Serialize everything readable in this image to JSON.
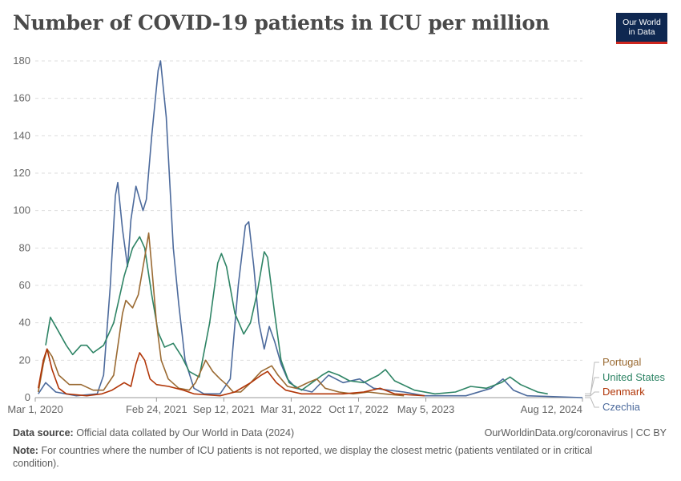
{
  "header": {
    "title": "Number of COVID-19 patients in ICU per million",
    "logo_line1": "Our World",
    "logo_line2": "in Data"
  },
  "footer": {
    "source_label": "Data source:",
    "source_text": "Official data collated by Our World in Data (2024)",
    "link": "OurWorldinData.org/coronavirus | CC BY",
    "note_label": "Note:",
    "note_text": "For countries where the number of ICU patients is not reported, we display the closest metric (patients ventilated or in critical condition)."
  },
  "chart_data": {
    "type": "line",
    "title": "Number of COVID-19 patients in ICU per million",
    "ylim": [
      0,
      180
    ],
    "yticks": [
      0,
      20,
      40,
      60,
      80,
      100,
      120,
      140,
      160,
      180
    ],
    "xlim": [
      "2020-03-01",
      "2024-08-12"
    ],
    "xticks": [
      "Mar 1, 2020",
      "Feb 24, 2021",
      "Sep 12, 2021",
      "Mar 31, 2022",
      "Oct 17, 2022",
      "May 5, 2023",
      "Aug 12, 2024"
    ],
    "xtick_dates": [
      "2020-03-01",
      "2021-02-24",
      "2021-09-12",
      "2022-03-31",
      "2022-10-17",
      "2023-05-05",
      "2024-08-12"
    ],
    "grid": true,
    "legend": "right, labels at line ends",
    "series": [
      {
        "name": "Portugal",
        "color": "#9a6a32",
        "points": [
          [
            "2020-03-10",
            3
          ],
          [
            "2020-03-25",
            18
          ],
          [
            "2020-04-05",
            26
          ],
          [
            "2020-04-20",
            22
          ],
          [
            "2020-05-10",
            12
          ],
          [
            "2020-06-10",
            7
          ],
          [
            "2020-07-15",
            7
          ],
          [
            "2020-08-20",
            4
          ],
          [
            "2020-09-20",
            4
          ],
          [
            "2020-10-20",
            12
          ],
          [
            "2020-11-15",
            45
          ],
          [
            "2020-11-25",
            52
          ],
          [
            "2020-12-15",
            48
          ],
          [
            "2021-01-01",
            55
          ],
          [
            "2021-01-20",
            75
          ],
          [
            "2021-02-01",
            88
          ],
          [
            "2021-02-10",
            70
          ],
          [
            "2021-02-24",
            40
          ],
          [
            "2021-03-10",
            20
          ],
          [
            "2021-03-31",
            10
          ],
          [
            "2021-05-01",
            5
          ],
          [
            "2021-06-01",
            4
          ],
          [
            "2021-06-20",
            8
          ],
          [
            "2021-07-20",
            20
          ],
          [
            "2021-08-10",
            14
          ],
          [
            "2021-09-01",
            10
          ],
          [
            "2021-09-20",
            7
          ],
          [
            "2021-10-10",
            3
          ],
          [
            "2021-11-01",
            3
          ],
          [
            "2021-12-01",
            8
          ],
          [
            "2022-01-01",
            14
          ],
          [
            "2022-02-01",
            17
          ],
          [
            "2022-02-20",
            12
          ],
          [
            "2022-03-20",
            6
          ],
          [
            "2022-04-15",
            5
          ],
          [
            "2022-05-20",
            8
          ],
          [
            "2022-06-15",
            10
          ],
          [
            "2022-07-10",
            5
          ],
          [
            "2022-08-20",
            3
          ],
          [
            "2022-10-01",
            2
          ],
          [
            "2022-11-15",
            3
          ],
          [
            "2023-01-01",
            2
          ],
          [
            "2023-03-01",
            1
          ]
        ]
      },
      {
        "name": "United States",
        "color": "#2e8465",
        "points": [
          [
            "2020-04-01",
            28
          ],
          [
            "2020-04-15",
            43
          ],
          [
            "2020-05-01",
            38
          ],
          [
            "2020-06-01",
            28
          ],
          [
            "2020-06-20",
            23
          ],
          [
            "2020-07-15",
            28
          ],
          [
            "2020-08-01",
            28
          ],
          [
            "2020-08-20",
            24
          ],
          [
            "2020-09-20",
            28
          ],
          [
            "2020-10-20",
            40
          ],
          [
            "2020-11-20",
            65
          ],
          [
            "2020-12-15",
            80
          ],
          [
            "2021-01-05",
            86
          ],
          [
            "2021-01-20",
            80
          ],
          [
            "2021-02-10",
            55
          ],
          [
            "2021-03-01",
            35
          ],
          [
            "2021-03-20",
            27
          ],
          [
            "2021-04-15",
            29
          ],
          [
            "2021-05-10",
            22
          ],
          [
            "2021-06-01",
            14
          ],
          [
            "2021-07-01",
            11
          ],
          [
            "2021-08-01",
            40
          ],
          [
            "2021-08-25",
            72
          ],
          [
            "2021-09-05",
            77
          ],
          [
            "2021-09-20",
            70
          ],
          [
            "2021-10-15",
            45
          ],
          [
            "2021-11-10",
            34
          ],
          [
            "2021-11-30",
            40
          ],
          [
            "2021-12-20",
            56
          ],
          [
            "2022-01-10",
            78
          ],
          [
            "2022-01-20",
            75
          ],
          [
            "2022-02-10",
            45
          ],
          [
            "2022-03-01",
            20
          ],
          [
            "2022-03-25",
            8
          ],
          [
            "2022-05-01",
            4
          ],
          [
            "2022-06-01",
            8
          ],
          [
            "2022-07-01",
            12
          ],
          [
            "2022-07-20",
            14
          ],
          [
            "2022-08-20",
            12
          ],
          [
            "2022-09-20",
            9
          ],
          [
            "2022-11-01",
            8
          ],
          [
            "2022-12-15",
            12
          ],
          [
            "2023-01-05",
            15
          ],
          [
            "2023-02-01",
            9
          ],
          [
            "2023-04-01",
            4
          ],
          [
            "2023-06-01",
            2
          ],
          [
            "2023-08-01",
            3
          ],
          [
            "2023-09-15",
            6
          ],
          [
            "2023-11-01",
            5
          ],
          [
            "2023-12-15",
            8
          ],
          [
            "2024-01-10",
            11
          ],
          [
            "2024-02-10",
            7
          ],
          [
            "2024-04-01",
            3
          ],
          [
            "2024-05-01",
            2
          ]
        ]
      },
      {
        "name": "Denmark",
        "color": "#b13507",
        "points": [
          [
            "2020-03-10",
            5
          ],
          [
            "2020-03-25",
            20
          ],
          [
            "2020-04-05",
            26
          ],
          [
            "2020-04-20",
            15
          ],
          [
            "2020-05-10",
            5
          ],
          [
            "2020-06-01",
            2
          ],
          [
            "2020-08-01",
            1
          ],
          [
            "2020-09-15",
            2
          ],
          [
            "2020-10-15",
            4
          ],
          [
            "2020-11-20",
            8
          ],
          [
            "2020-12-10",
            6
          ],
          [
            "2020-12-25",
            18
          ],
          [
            "2021-01-05",
            24
          ],
          [
            "2021-01-20",
            20
          ],
          [
            "2021-02-05",
            10
          ],
          [
            "2021-02-24",
            7
          ],
          [
            "2021-04-01",
            6
          ],
          [
            "2021-05-15",
            4
          ],
          [
            "2021-06-15",
            2
          ],
          [
            "2021-09-01",
            1
          ],
          [
            "2021-10-15",
            3
          ],
          [
            "2021-12-01",
            8
          ],
          [
            "2022-01-01",
            12
          ],
          [
            "2022-01-20",
            14
          ],
          [
            "2022-02-15",
            8
          ],
          [
            "2022-03-15",
            4
          ],
          [
            "2022-05-01",
            2
          ],
          [
            "2022-07-01",
            2
          ],
          [
            "2022-09-01",
            2
          ],
          [
            "2022-11-01",
            3
          ],
          [
            "2022-12-20",
            5
          ],
          [
            "2023-02-01",
            2
          ],
          [
            "2023-05-01",
            1
          ]
        ]
      },
      {
        "name": "Czechia",
        "color": "#4c6a9c",
        "points": [
          [
            "2020-03-10",
            2
          ],
          [
            "2020-04-01",
            8
          ],
          [
            "2020-05-01",
            3
          ],
          [
            "2020-07-01",
            1
          ],
          [
            "2020-09-01",
            2
          ],
          [
            "2020-09-20",
            12
          ],
          [
            "2020-10-10",
            60
          ],
          [
            "2020-10-25",
            108
          ],
          [
            "2020-11-01",
            115
          ],
          [
            "2020-11-15",
            90
          ],
          [
            "2020-11-30",
            70
          ],
          [
            "2020-12-10",
            95
          ],
          [
            "2020-12-25",
            113
          ],
          [
            "2021-01-15",
            100
          ],
          [
            "2021-01-25",
            106
          ],
          [
            "2021-02-10",
            140
          ],
          [
            "2021-03-01",
            175
          ],
          [
            "2021-03-08",
            180
          ],
          [
            "2021-03-25",
            150
          ],
          [
            "2021-04-15",
            80
          ],
          [
            "2021-05-01",
            50
          ],
          [
            "2021-05-20",
            20
          ],
          [
            "2021-06-15",
            5
          ],
          [
            "2021-07-15",
            2
          ],
          [
            "2021-09-01",
            2
          ],
          [
            "2021-10-01",
            10
          ],
          [
            "2021-10-25",
            60
          ],
          [
            "2021-11-15",
            92
          ],
          [
            "2021-11-25",
            94
          ],
          [
            "2021-12-10",
            70
          ],
          [
            "2021-12-25",
            40
          ],
          [
            "2022-01-10",
            26
          ],
          [
            "2022-01-25",
            38
          ],
          [
            "2022-02-10",
            30
          ],
          [
            "2022-03-01",
            18
          ],
          [
            "2022-03-20",
            10
          ],
          [
            "2022-04-15",
            5
          ],
          [
            "2022-06-01",
            3
          ],
          [
            "2022-07-20",
            12
          ],
          [
            "2022-09-01",
            8
          ],
          [
            "2022-10-20",
            10
          ],
          [
            "2022-12-01",
            5
          ],
          [
            "2023-01-15",
            4
          ],
          [
            "2023-03-01",
            3
          ],
          [
            "2023-05-01",
            1
          ],
          [
            "2023-09-01",
            1
          ],
          [
            "2023-11-15",
            5
          ],
          [
            "2023-12-20",
            10
          ],
          [
            "2024-01-20",
            4
          ],
          [
            "2024-03-01",
            1
          ],
          [
            "2024-08-12",
            0
          ]
        ]
      }
    ]
  }
}
